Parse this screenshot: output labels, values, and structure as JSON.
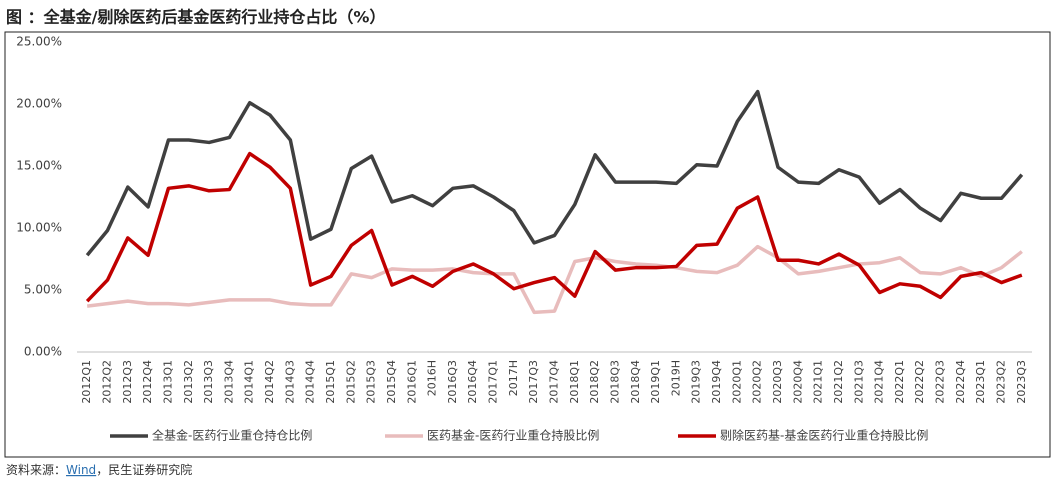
{
  "chart_data": {
    "type": "line",
    "title": "图 ：全基金/剔除医药后基金医药行业持仓占比（%）",
    "categories": [
      "2012Q1",
      "2012Q2",
      "2012Q3",
      "2012Q4",
      "2013Q1",
      "2013Q2",
      "2013Q3",
      "2013Q4",
      "2014Q1",
      "2014Q2",
      "2014Q3",
      "2014Q4",
      "2015Q1",
      "2015Q2",
      "2015Q3",
      "2015Q4",
      "2016Q1",
      "2016H",
      "2016Q3",
      "2016Q4",
      "2017Q1",
      "2017H",
      "2017Q3",
      "2017Q4",
      "2018Q1",
      "2018Q2",
      "2018Q3",
      "2018Q4",
      "2019Q1",
      "2019H",
      "2019Q3",
      "2019Q4",
      "2020Q1",
      "2020Q2",
      "2020Q3",
      "2020Q4",
      "2021Q1",
      "2021Q2",
      "2021Q3",
      "2021Q4",
      "2022Q1",
      "2022Q2",
      "2022Q3",
      "2022Q4",
      "2023Q1",
      "2023Q2",
      "2023Q3"
    ],
    "series": [
      {
        "name": "全基金-医药行业重仓持仓比例",
        "color": "#404040",
        "values": [
          7.8,
          9.8,
          13.3,
          11.7,
          17.1,
          17.1,
          16.9,
          17.3,
          20.1,
          19.1,
          17.1,
          9.1,
          9.9,
          14.8,
          15.8,
          12.1,
          12.6,
          11.8,
          13.2,
          13.4,
          12.5,
          11.4,
          8.8,
          9.4,
          11.9,
          15.9,
          13.7,
          13.7,
          13.7,
          13.6,
          15.1,
          15.0,
          18.6,
          21.0,
          14.9,
          13.7,
          13.6,
          14.7,
          14.1,
          12.0,
          13.1,
          11.6,
          10.6,
          12.8,
          12.4,
          12.4,
          14.3
        ]
      },
      {
        "name": "医药基金-医药行业重仓持股比例",
        "color": "#e8bcbc",
        "values": [
          3.7,
          3.9,
          4.1,
          3.9,
          3.9,
          3.8,
          4.0,
          4.2,
          4.2,
          4.2,
          3.9,
          3.8,
          3.8,
          6.3,
          6.0,
          6.7,
          6.6,
          6.6,
          6.7,
          6.4,
          6.3,
          6.3,
          3.2,
          3.3,
          7.3,
          7.6,
          7.3,
          7.1,
          7.0,
          6.8,
          6.5,
          6.4,
          7.0,
          8.5,
          7.6,
          6.3,
          6.5,
          6.8,
          7.1,
          7.2,
          7.6,
          6.4,
          6.3,
          6.8,
          6.1,
          6.8,
          8.1
        ]
      },
      {
        "name": "剔除医药基-基金医药行业重仓持股比例",
        "color": "#c00000",
        "values": [
          4.1,
          5.8,
          9.2,
          7.8,
          13.2,
          13.4,
          13.0,
          13.1,
          16.0,
          14.9,
          13.2,
          5.4,
          6.1,
          8.6,
          9.8,
          5.4,
          6.1,
          5.3,
          6.5,
          7.1,
          6.3,
          5.1,
          5.6,
          6.0,
          4.5,
          8.1,
          6.6,
          6.8,
          6.8,
          6.9,
          8.6,
          8.7,
          11.6,
          12.5,
          7.4,
          7.4,
          7.1,
          7.9,
          7.0,
          4.8,
          5.5,
          5.3,
          4.4,
          6.1,
          6.4,
          5.6,
          6.2
        ]
      }
    ],
    "ylim": [
      0,
      25
    ],
    "yticks": [
      {
        "value": 0,
        "label": "0.00%"
      },
      {
        "value": 5,
        "label": "5.00%"
      },
      {
        "value": 10,
        "label": "10.00%"
      },
      {
        "value": 15,
        "label": "15.00%"
      },
      {
        "value": 20,
        "label": "20.00%"
      },
      {
        "value": 25,
        "label": "25.00%"
      }
    ],
    "grid": false,
    "legend": "bottom",
    "source": [
      "资料来源：",
      "Wind",
      "，民生证券研究院"
    ]
  }
}
